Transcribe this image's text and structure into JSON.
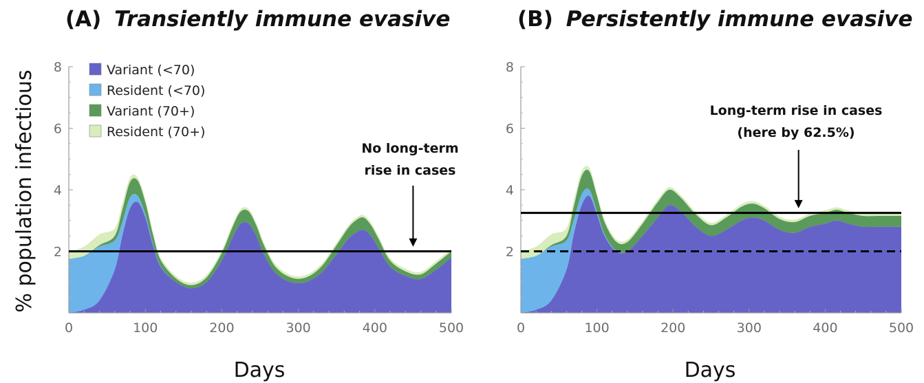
{
  "ylabel": "% population infectious",
  "legend": [
    {
      "label": "Variant (<70)",
      "color": "#6563c8"
    },
    {
      "label": "Resident (<70)",
      "color": "#6cb4ea"
    },
    {
      "label": "Variant (70+)",
      "color": "#5a9a5a"
    },
    {
      "label": "Resident (70+)",
      "color": "#d9ecbb"
    }
  ],
  "chart_data": [
    {
      "type": "area",
      "panel_label": "(A)",
      "title": "Transiently immune evasive",
      "xlabel": "Days",
      "xlim": [
        0,
        500
      ],
      "ylim": [
        0,
        8
      ],
      "xticks": [
        0,
        100,
        200,
        300,
        400,
        500
      ],
      "yticks": [
        2,
        4,
        6,
        8
      ],
      "x": [
        0,
        20,
        40,
        60,
        70,
        80,
        90,
        100,
        110,
        120,
        140,
        160,
        180,
        200,
        215,
        225,
        235,
        245,
        255,
        270,
        290,
        310,
        330,
        350,
        365,
        375,
        385,
        395,
        405,
        420,
        440,
        460,
        480,
        500
      ],
      "series": [
        {
          "name": "Variant (<70)",
          "values": [
            0.0,
            0.1,
            0.4,
            1.4,
            2.5,
            3.4,
            3.6,
            3.1,
            2.2,
            1.5,
            1.0,
            0.8,
            1.0,
            1.7,
            2.5,
            2.9,
            2.9,
            2.5,
            1.9,
            1.3,
            1.0,
            1.0,
            1.3,
            1.9,
            2.4,
            2.6,
            2.7,
            2.5,
            2.1,
            1.5,
            1.2,
            1.1,
            1.4,
            1.8
          ]
        },
        {
          "name": "Resident (<70)",
          "values": [
            1.75,
            1.75,
            1.75,
            0.95,
            0.45,
            0.35,
            0.2,
            0.1,
            0.05,
            0.02,
            0.0,
            0.0,
            0.0,
            0.0,
            0.0,
            0.0,
            0.0,
            0.0,
            0.0,
            0.0,
            0.0,
            0.0,
            0.0,
            0.0,
            0.0,
            0.0,
            0.0,
            0.0,
            0.0,
            0.0,
            0.0,
            0.0,
            0.0,
            0.0
          ]
        },
        {
          "name": "Variant (70+)",
          "values": [
            0.0,
            0.0,
            0.05,
            0.15,
            0.4,
            0.5,
            0.5,
            0.4,
            0.3,
            0.2,
            0.12,
            0.1,
            0.15,
            0.25,
            0.35,
            0.4,
            0.4,
            0.35,
            0.3,
            0.2,
            0.15,
            0.15,
            0.2,
            0.3,
            0.35,
            0.4,
            0.4,
            0.35,
            0.3,
            0.2,
            0.15,
            0.15,
            0.2,
            0.2
          ]
        },
        {
          "name": "Resident (70+)",
          "values": [
            0.25,
            0.3,
            0.35,
            0.25,
            0.2,
            0.15,
            0.1,
            0.1,
            0.08,
            0.08,
            0.08,
            0.08,
            0.08,
            0.08,
            0.08,
            0.08,
            0.08,
            0.08,
            0.08,
            0.08,
            0.08,
            0.08,
            0.08,
            0.08,
            0.08,
            0.08,
            0.08,
            0.08,
            0.08,
            0.08,
            0.08,
            0.08,
            0.08,
            0.08
          ]
        }
      ],
      "reference_lines": [
        {
          "style": "solid",
          "y": 2.0
        },
        {
          "style": "dashed",
          "y": 2.0
        }
      ],
      "annotation": {
        "lines": [
          "No long-term",
          "rise in cases"
        ],
        "arrow_x": 450,
        "arrow_y": 2.15
      }
    },
    {
      "type": "area",
      "panel_label": "(B)",
      "title": "Persistently immune evasive",
      "xlabel": "Days",
      "xlim": [
        0,
        500
      ],
      "ylim": [
        0,
        8
      ],
      "xticks": [
        0,
        100,
        200,
        300,
        400,
        500
      ],
      "yticks": [
        2,
        4,
        6,
        8
      ],
      "x": [
        0,
        20,
        40,
        60,
        70,
        80,
        90,
        100,
        110,
        125,
        140,
        160,
        180,
        195,
        210,
        230,
        250,
        270,
        290,
        305,
        320,
        340,
        360,
        380,
        400,
        415,
        430,
        450,
        470,
        500
      ],
      "series": [
        {
          "name": "Variant (<70)",
          "values": [
            0.0,
            0.1,
            0.4,
            1.4,
            2.6,
            3.5,
            3.8,
            3.2,
            2.5,
            2.0,
            2.0,
            2.5,
            3.1,
            3.5,
            3.3,
            2.8,
            2.5,
            2.7,
            3.0,
            3.1,
            3.0,
            2.7,
            2.6,
            2.8,
            2.9,
            3.0,
            2.9,
            2.8,
            2.8,
            2.8
          ]
        },
        {
          "name": "Resident (<70)",
          "values": [
            1.75,
            1.75,
            1.75,
            0.95,
            0.45,
            0.35,
            0.2,
            0.1,
            0.05,
            0.02,
            0.0,
            0.0,
            0.0,
            0.0,
            0.0,
            0.0,
            0.0,
            0.0,
            0.0,
            0.0,
            0.0,
            0.0,
            0.0,
            0.0,
            0.0,
            0.0,
            0.0,
            0.0,
            0.0,
            0.0
          ]
        },
        {
          "name": "Variant (70+)",
          "values": [
            0.0,
            0.0,
            0.05,
            0.15,
            0.45,
            0.6,
            0.6,
            0.5,
            0.4,
            0.3,
            0.3,
            0.4,
            0.5,
            0.5,
            0.45,
            0.4,
            0.35,
            0.4,
            0.45,
            0.45,
            0.4,
            0.35,
            0.35,
            0.35,
            0.35,
            0.35,
            0.35,
            0.35,
            0.35,
            0.35
          ]
        },
        {
          "name": "Resident (70+)",
          "values": [
            0.25,
            0.3,
            0.35,
            0.25,
            0.2,
            0.15,
            0.12,
            0.1,
            0.08,
            0.08,
            0.08,
            0.08,
            0.08,
            0.08,
            0.08,
            0.08,
            0.08,
            0.08,
            0.08,
            0.08,
            0.08,
            0.08,
            0.08,
            0.08,
            0.08,
            0.08,
            0.08,
            0.08,
            0.08,
            0.08
          ]
        }
      ],
      "reference_lines": [
        {
          "style": "solid",
          "y": 3.25
        },
        {
          "style": "dashed",
          "y": 2.0
        }
      ],
      "annotation": {
        "lines": [
          "Long-term rise in cases",
          "(here by 62.5%)"
        ],
        "arrow_x": 365,
        "arrow_y": 3.4
      }
    }
  ]
}
